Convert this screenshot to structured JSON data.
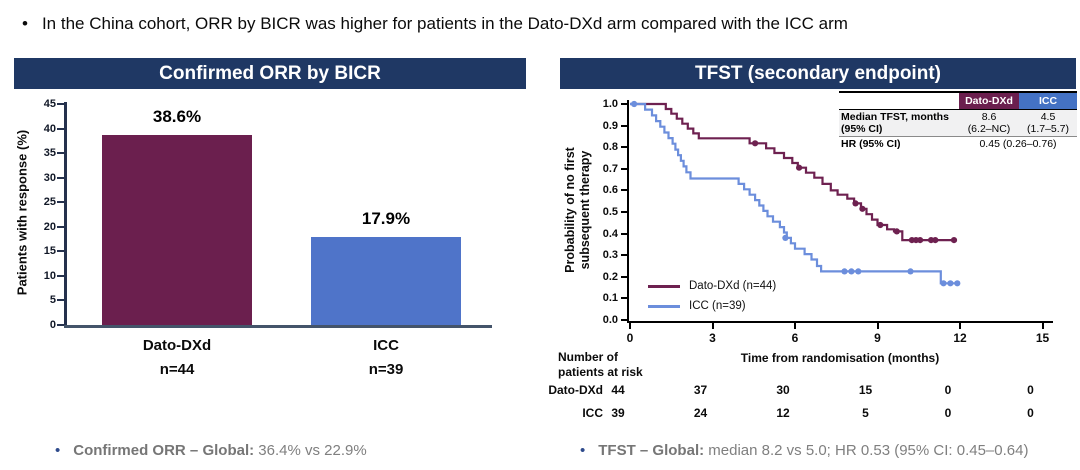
{
  "bullet_top": "In the China cohort, ORR by BICR was higher for patients in the Dato-DXd arm compared with the ICC arm",
  "footer": {
    "left": {
      "bold": "Confirmed ORR – Global:",
      "rest": " 36.4% vs 22.9%"
    },
    "right": {
      "bold": "TFST – Global:",
      "rest": " median 8.2 vs 5.0; HR 0.53 (95% CI: 0.45–0.64)"
    }
  },
  "colors": {
    "header_navy": "#1F3864",
    "maroon": "#6B1F4E",
    "bar_blue": "#4F74C9",
    "km_blue": "#6C8EDC",
    "table_blue": "#4472C4",
    "footer_gray": "#7F7F7F"
  },
  "chart_data": [
    {
      "type": "bar",
      "title": "Confirmed ORR by BICR",
      "ylabel": "Patients with response (%)",
      "ylim": [
        0,
        45
      ],
      "yticks": [
        0,
        5,
        10,
        15,
        20,
        25,
        30,
        35,
        40,
        45
      ],
      "grid": false,
      "categories": [
        "Dato-DXd",
        "ICC"
      ],
      "sublabels": [
        "n=44",
        "n=39"
      ],
      "values": [
        38.6,
        17.9
      ],
      "value_labels": [
        "38.6%",
        "17.9%"
      ],
      "bar_colors": [
        "#6B1F4E",
        "#4F74C9"
      ]
    },
    {
      "type": "line",
      "subtype": "kaplan-meier-step",
      "title": "TFST (secondary endpoint)",
      "xlabel": "Time from randomisation (months)",
      "ylabel_lines": [
        "Probability of no first",
        "subsequent therapy"
      ],
      "xlim": [
        0,
        15
      ],
      "ylim": [
        0.0,
        1.0
      ],
      "xticks": [
        0,
        3,
        6,
        9,
        12,
        15
      ],
      "ytick_step": 0.1,
      "grid": false,
      "legend_position": "inside-bottom-left",
      "series": [
        {
          "name": "Dato-DXd (n=44)",
          "color": "#6E2150",
          "steps": [
            [
              0,
              1.0
            ],
            [
              1.3,
              0.977
            ],
            [
              1.5,
              0.955
            ],
            [
              1.7,
              0.932
            ],
            [
              1.9,
              0.909
            ],
            [
              2.1,
              0.886
            ],
            [
              2.3,
              0.864
            ],
            [
              2.5,
              0.841
            ],
            [
              4.35,
              0.818
            ],
            [
              4.95,
              0.795
            ],
            [
              5.25,
              0.773
            ],
            [
              5.6,
              0.75
            ],
            [
              5.9,
              0.727
            ],
            [
              6.1,
              0.705
            ],
            [
              6.4,
              0.682
            ],
            [
              6.7,
              0.659
            ],
            [
              7.0,
              0.63
            ],
            [
              7.3,
              0.6
            ],
            [
              7.55,
              0.58
            ],
            [
              7.9,
              0.562
            ],
            [
              8.15,
              0.54
            ],
            [
              8.4,
              0.515
            ],
            [
              8.6,
              0.49
            ],
            [
              8.8,
              0.465
            ],
            [
              9.0,
              0.44
            ],
            [
              9.35,
              0.42
            ],
            [
              9.6,
              0.41
            ],
            [
              9.9,
              0.37
            ],
            [
              11.8,
              0.37
            ]
          ],
          "censors": [
            [
              4.55,
              0.818
            ],
            [
              6.15,
              0.705
            ],
            [
              8.2,
              0.54
            ],
            [
              8.45,
              0.515
            ],
            [
              9.1,
              0.44
            ],
            [
              9.7,
              0.41
            ],
            [
              10.25,
              0.37
            ],
            [
              10.4,
              0.37
            ],
            [
              10.55,
              0.37
            ],
            [
              10.95,
              0.37
            ],
            [
              11.1,
              0.37
            ],
            [
              11.78,
              0.37
            ]
          ]
        },
        {
          "name": "ICC (n=39)",
          "color": "#6C8EDC",
          "steps": [
            [
              0,
              1.0
            ],
            [
              0.55,
              0.974
            ],
            [
              0.8,
              0.947
            ],
            [
              0.95,
              0.921
            ],
            [
              1.1,
              0.895
            ],
            [
              1.25,
              0.868
            ],
            [
              1.4,
              0.842
            ],
            [
              1.55,
              0.816
            ],
            [
              1.65,
              0.789
            ],
            [
              1.75,
              0.763
            ],
            [
              1.85,
              0.737
            ],
            [
              1.95,
              0.711
            ],
            [
              2.05,
              0.684
            ],
            [
              2.2,
              0.655
            ],
            [
              3.95,
              0.63
            ],
            [
              4.15,
              0.605
            ],
            [
              4.35,
              0.58
            ],
            [
              4.55,
              0.555
            ],
            [
              4.7,
              0.53
            ],
            [
              4.85,
              0.505
            ],
            [
              5.0,
              0.48
            ],
            [
              5.2,
              0.455
            ],
            [
              5.45,
              0.43
            ],
            [
              5.6,
              0.405
            ],
            [
              5.7,
              0.38
            ],
            [
              5.85,
              0.355
            ],
            [
              6.0,
              0.33
            ],
            [
              6.35,
              0.305
            ],
            [
              6.6,
              0.28
            ],
            [
              6.8,
              0.25
            ],
            [
              6.95,
              0.225
            ],
            [
              11.3,
              0.17
            ],
            [
              11.9,
              0.17
            ]
          ],
          "censors": [
            [
              0.15,
              1.0
            ],
            [
              5.65,
              0.38
            ],
            [
              7.8,
              0.225
            ],
            [
              8.05,
              0.225
            ],
            [
              8.3,
              0.225
            ],
            [
              10.2,
              0.225
            ],
            [
              11.4,
              0.17
            ],
            [
              11.65,
              0.17
            ],
            [
              11.9,
              0.17
            ]
          ]
        }
      ],
      "stats_table": {
        "columns": [
          "Dato-DXd",
          "ICC"
        ],
        "column_colors": [
          "#6B1F4E",
          "#4472C4"
        ],
        "rows": [
          {
            "label": [
              "Median TFST, months",
              "(95% CI)"
            ],
            "values": [
              [
                "8.6",
                "(6.2–NC)"
              ],
              [
                "4.5",
                "(1.7–5.7)"
              ]
            ]
          },
          {
            "label": [
              "HR (95% CI)"
            ],
            "merged_value": "0.45 (0.26–0.76)"
          }
        ]
      },
      "risk_table": {
        "title": [
          "Number of",
          "patients at risk"
        ],
        "times": [
          0,
          3,
          6,
          9,
          12,
          15
        ],
        "rows": [
          {
            "label": "Dato-DXd",
            "values": [
              44,
              37,
              30,
              15,
              0,
              0
            ]
          },
          {
            "label": "ICC",
            "values": [
              39,
              24,
              12,
              5,
              0,
              0
            ]
          }
        ]
      }
    }
  ]
}
